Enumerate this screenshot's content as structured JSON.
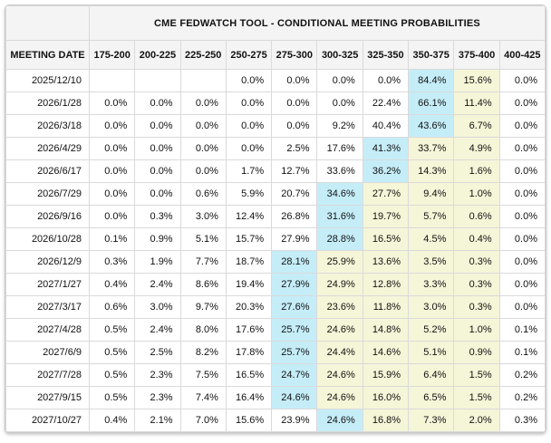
{
  "title": "CME FEDWATCH TOOL - CONDITIONAL MEETING PROBABILITIES",
  "columns": [
    "MEETING DATE",
    "175-200",
    "200-225",
    "225-250",
    "250-275",
    "275-300",
    "300-325",
    "325-350",
    "350-375",
    "375-400",
    "400-425"
  ],
  "colors": {
    "highlight_blue": "#c5edf8",
    "highlight_yellow": "#f5f5d8",
    "header_bg": "#f4f4f4",
    "border": "#dadada",
    "border_outer": "#c9c9c9",
    "text": "#111111"
  },
  "rows": [
    {
      "date": "2025/12/10",
      "values": [
        "",
        "",
        "",
        "0.0%",
        "0.0%",
        "0.0%",
        "0.0%",
        "84.4%",
        "15.6%",
        "0.0%"
      ],
      "highlights": [
        "",
        "",
        "",
        "",
        "",
        "",
        "",
        "b",
        "y",
        ""
      ]
    },
    {
      "date": "2026/1/28",
      "values": [
        "0.0%",
        "0.0%",
        "0.0%",
        "0.0%",
        "0.0%",
        "0.0%",
        "22.4%",
        "66.1%",
        "11.4%",
        "0.0%"
      ],
      "highlights": [
        "",
        "",
        "",
        "",
        "",
        "",
        "",
        "b",
        "y",
        ""
      ]
    },
    {
      "date": "2026/3/18",
      "values": [
        "0.0%",
        "0.0%",
        "0.0%",
        "0.0%",
        "0.0%",
        "9.2%",
        "40.4%",
        "43.6%",
        "6.7%",
        "0.0%"
      ],
      "highlights": [
        "",
        "",
        "",
        "",
        "",
        "",
        "",
        "b",
        "y",
        ""
      ]
    },
    {
      "date": "2026/4/29",
      "values": [
        "0.0%",
        "0.0%",
        "0.0%",
        "0.0%",
        "2.5%",
        "17.6%",
        "41.3%",
        "33.7%",
        "4.9%",
        "0.0%"
      ],
      "highlights": [
        "",
        "",
        "",
        "",
        "",
        "",
        "b",
        "y",
        "y",
        ""
      ]
    },
    {
      "date": "2026/6/17",
      "values": [
        "0.0%",
        "0.0%",
        "0.0%",
        "1.7%",
        "12.7%",
        "33.6%",
        "36.2%",
        "14.3%",
        "1.6%",
        "0.0%"
      ],
      "highlights": [
        "",
        "",
        "",
        "",
        "",
        "",
        "b",
        "y",
        "y",
        ""
      ]
    },
    {
      "date": "2026/7/29",
      "values": [
        "0.0%",
        "0.0%",
        "0.6%",
        "5.9%",
        "20.7%",
        "34.6%",
        "27.7%",
        "9.4%",
        "1.0%",
        "0.0%"
      ],
      "highlights": [
        "",
        "",
        "",
        "",
        "",
        "b",
        "y",
        "y",
        "y",
        ""
      ]
    },
    {
      "date": "2026/9/16",
      "values": [
        "0.0%",
        "0.3%",
        "3.0%",
        "12.4%",
        "26.8%",
        "31.6%",
        "19.7%",
        "5.7%",
        "0.6%",
        "0.0%"
      ],
      "highlights": [
        "",
        "",
        "",
        "",
        "",
        "b",
        "y",
        "y",
        "y",
        ""
      ]
    },
    {
      "date": "2026/10/28",
      "values": [
        "0.1%",
        "0.9%",
        "5.1%",
        "15.7%",
        "27.9%",
        "28.8%",
        "16.5%",
        "4.5%",
        "0.4%",
        "0.0%"
      ],
      "highlights": [
        "",
        "",
        "",
        "",
        "",
        "b",
        "y",
        "y",
        "y",
        ""
      ]
    },
    {
      "date": "2026/12/9",
      "values": [
        "0.3%",
        "1.9%",
        "7.7%",
        "18.7%",
        "28.1%",
        "25.9%",
        "13.6%",
        "3.5%",
        "0.3%",
        "0.0%"
      ],
      "highlights": [
        "",
        "",
        "",
        "",
        "b",
        "y",
        "y",
        "y",
        "y",
        ""
      ]
    },
    {
      "date": "2027/1/27",
      "values": [
        "0.4%",
        "2.4%",
        "8.6%",
        "19.4%",
        "27.9%",
        "24.9%",
        "12.8%",
        "3.3%",
        "0.3%",
        "0.0%"
      ],
      "highlights": [
        "",
        "",
        "",
        "",
        "b",
        "y",
        "y",
        "y",
        "y",
        ""
      ]
    },
    {
      "date": "2027/3/17",
      "values": [
        "0.6%",
        "3.0%",
        "9.7%",
        "20.3%",
        "27.6%",
        "23.6%",
        "11.8%",
        "3.0%",
        "0.3%",
        "0.0%"
      ],
      "highlights": [
        "",
        "",
        "",
        "",
        "b",
        "y",
        "y",
        "y",
        "y",
        ""
      ]
    },
    {
      "date": "2027/4/28",
      "values": [
        "0.5%",
        "2.4%",
        "8.0%",
        "17.6%",
        "25.7%",
        "24.6%",
        "14.8%",
        "5.2%",
        "1.0%",
        "0.1%"
      ],
      "highlights": [
        "",
        "",
        "",
        "",
        "b",
        "y",
        "y",
        "y",
        "y",
        ""
      ]
    },
    {
      "date": "2027/6/9",
      "values": [
        "0.5%",
        "2.5%",
        "8.2%",
        "17.8%",
        "25.7%",
        "24.4%",
        "14.6%",
        "5.1%",
        "0.9%",
        "0.1%"
      ],
      "highlights": [
        "",
        "",
        "",
        "",
        "b",
        "y",
        "y",
        "y",
        "y",
        ""
      ]
    },
    {
      "date": "2027/7/28",
      "values": [
        "0.5%",
        "2.3%",
        "7.5%",
        "16.5%",
        "24.7%",
        "24.6%",
        "15.9%",
        "6.4%",
        "1.5%",
        "0.2%"
      ],
      "highlights": [
        "",
        "",
        "",
        "",
        "b",
        "y",
        "y",
        "y",
        "y",
        ""
      ]
    },
    {
      "date": "2027/9/15",
      "values": [
        "0.5%",
        "2.3%",
        "7.4%",
        "16.4%",
        "24.6%",
        "24.6%",
        "16.0%",
        "6.5%",
        "1.5%",
        "0.2%"
      ],
      "highlights": [
        "",
        "",
        "",
        "",
        "b",
        "y",
        "y",
        "y",
        "y",
        ""
      ]
    },
    {
      "date": "2027/10/27",
      "values": [
        "0.4%",
        "2.1%",
        "7.0%",
        "15.6%",
        "23.9%",
        "24.6%",
        "16.8%",
        "7.3%",
        "2.0%",
        "0.3%"
      ],
      "highlights": [
        "",
        "",
        "",
        "",
        "",
        "b",
        "y",
        "y",
        "y",
        ""
      ]
    }
  ]
}
